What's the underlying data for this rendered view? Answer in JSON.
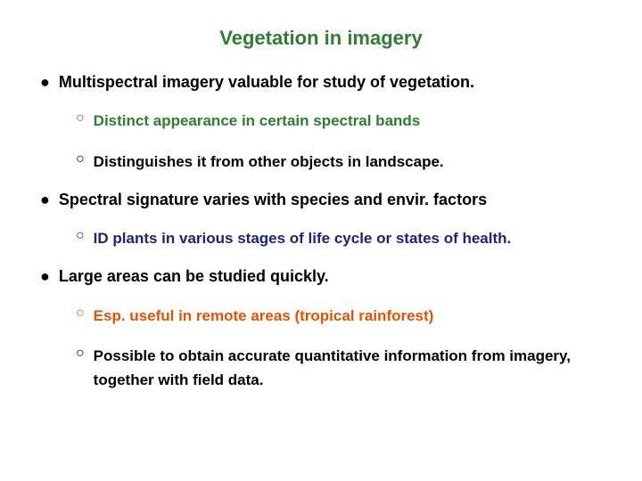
{
  "title": "Vegetation in imagery",
  "title_color": "#2e7d32",
  "background_color": "#ffffff",
  "font_family": "Arial",
  "title_fontsize": 22,
  "body_fontsize": 18,
  "sub_fontsize": 17,
  "bullets": [
    {
      "text": "Multispectral imagery valuable for study of vegetation.",
      "color": "#000000",
      "subs": [
        {
          "text": "Distinct appearance in certain spectral bands",
          "color": "#2e7d32"
        },
        {
          "text": "Distinguishes it  from other objects in landscape.",
          "color": "#000000"
        }
      ]
    },
    {
      "text": "Spectral signature varies with species and envir. factors",
      "color": "#000000",
      "subs": [
        {
          "text": "ID plants in various stages of life cycle or states of health.",
          "color": "#1a237e"
        }
      ]
    },
    {
      "text": "Large areas can be studied quickly.",
      "color": "#000000",
      "subs": [
        {
          "text": "Esp. useful in remote areas (tropical rainforest)",
          "color": "#e65100"
        },
        {
          "text": "Possible to obtain accurate quantitative information from imagery, together with field data.",
          "color": "#000000"
        }
      ]
    }
  ],
  "main_marker": "●",
  "sub_marker": "○"
}
